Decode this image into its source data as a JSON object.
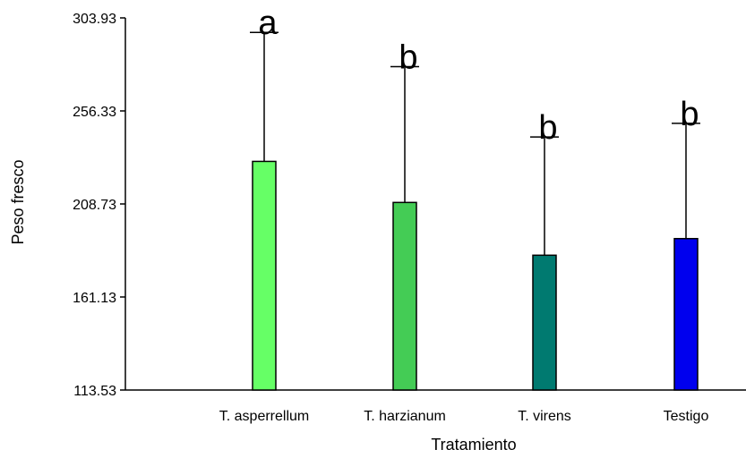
{
  "chart_data": {
    "type": "bar",
    "title": "",
    "xlabel": "Tratamiento",
    "ylabel": "Peso fresco",
    "ylim": [
      113.53,
      303.93
    ],
    "yticks": [
      "113.53",
      "161.13",
      "208.73",
      "256.33",
      "303.93"
    ],
    "categories": [
      "T. asperrellum",
      "T. harzianum",
      "T. virens",
      "Testigo"
    ],
    "values": [
      230.5,
      209.5,
      182.5,
      191.0
    ],
    "error_upper": [
      296.5,
      279.0,
      243.0,
      250.0
    ],
    "significance": [
      "a",
      "b",
      "b",
      "b"
    ],
    "colors": [
      "#66ff66",
      "#44cc55",
      "#007a70",
      "#0000ee"
    ],
    "grid": false
  }
}
